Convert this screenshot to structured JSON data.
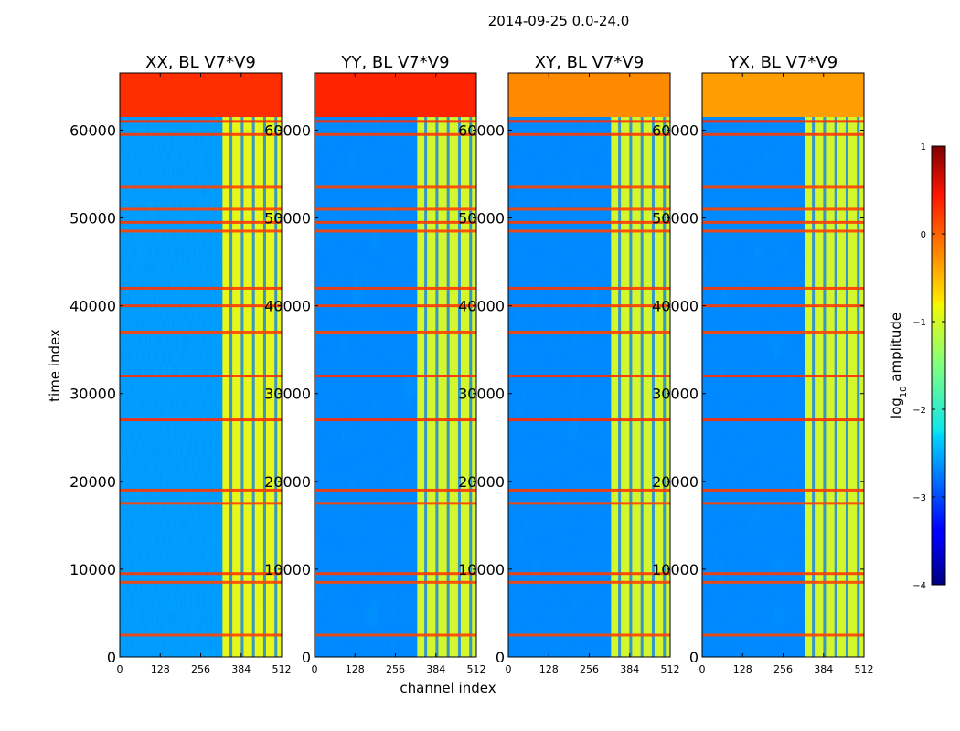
{
  "figure": {
    "suptitle": "2014-09-25 0.0-24.0",
    "xlabel": "channel index",
    "ylabel": "time index"
  },
  "chart_data": {
    "type": "heatmap",
    "x_ticks": [
      0,
      128,
      256,
      384,
      512
    ],
    "y_ticks": [
      0,
      10000,
      20000,
      30000,
      40000,
      50000,
      60000
    ],
    "xlim": [
      0,
      512
    ],
    "ylim": [
      0,
      66500
    ],
    "panels": [
      {
        "title": "XX, BL V7*V9",
        "band_channels": [
          325,
          512
        ],
        "top_band_level": 0.15,
        "band_level": -0.9,
        "background_level": -2.6
      },
      {
        "title": "YY, BL V7*V9",
        "band_channels": [
          325,
          512
        ],
        "top_band_level": 0.2,
        "band_level": -1.0,
        "background_level": -2.7
      },
      {
        "title": "XY, BL V7*V9",
        "band_channels": [
          325,
          512
        ],
        "top_band_level": -0.3,
        "band_level": -1.0,
        "background_level": -2.7
      },
      {
        "title": "YX, BL V7*V9",
        "band_channels": [
          325,
          512
        ],
        "top_band_level": -0.4,
        "band_level": -1.0,
        "background_level": -2.7
      }
    ],
    "row_flags": [
      {
        "time": 2500,
        "level": 0.05
      },
      {
        "time": 8500,
        "level": 0.05
      },
      {
        "time": 9500,
        "level": 0.1
      },
      {
        "time": 17500,
        "level": 0.05
      },
      {
        "time": 19000,
        "level": 0.1
      },
      {
        "time": 27000,
        "level": 0.15
      },
      {
        "time": 32000,
        "level": 0.15
      },
      {
        "time": 37000,
        "level": 0.05
      },
      {
        "time": 40000,
        "level": 0.1
      },
      {
        "time": 42000,
        "level": 0.1
      },
      {
        "time": 48500,
        "level": 0.05
      },
      {
        "time": 49500,
        "level": 0.1
      },
      {
        "time": 51000,
        "level": 0.05
      },
      {
        "time": 53500,
        "level": 0.05
      },
      {
        "time": 59500,
        "level": 0.1
      },
      {
        "time": 61000,
        "level": 0.15
      }
    ],
    "colorbar": {
      "label": "log10 amplitude",
      "label_base": "log",
      "label_sub": "10",
      "label_rest": " amplitude",
      "vmin": -4,
      "vmax": 1,
      "ticks": [
        {
          "value": 1,
          "label": "1"
        },
        {
          "value": 0,
          "label": "0"
        },
        {
          "value": -1,
          "label": "−1"
        },
        {
          "value": -2,
          "label": "−2"
        },
        {
          "value": -3,
          "label": "−3"
        },
        {
          "value": -4,
          "label": "−4"
        }
      ]
    }
  }
}
